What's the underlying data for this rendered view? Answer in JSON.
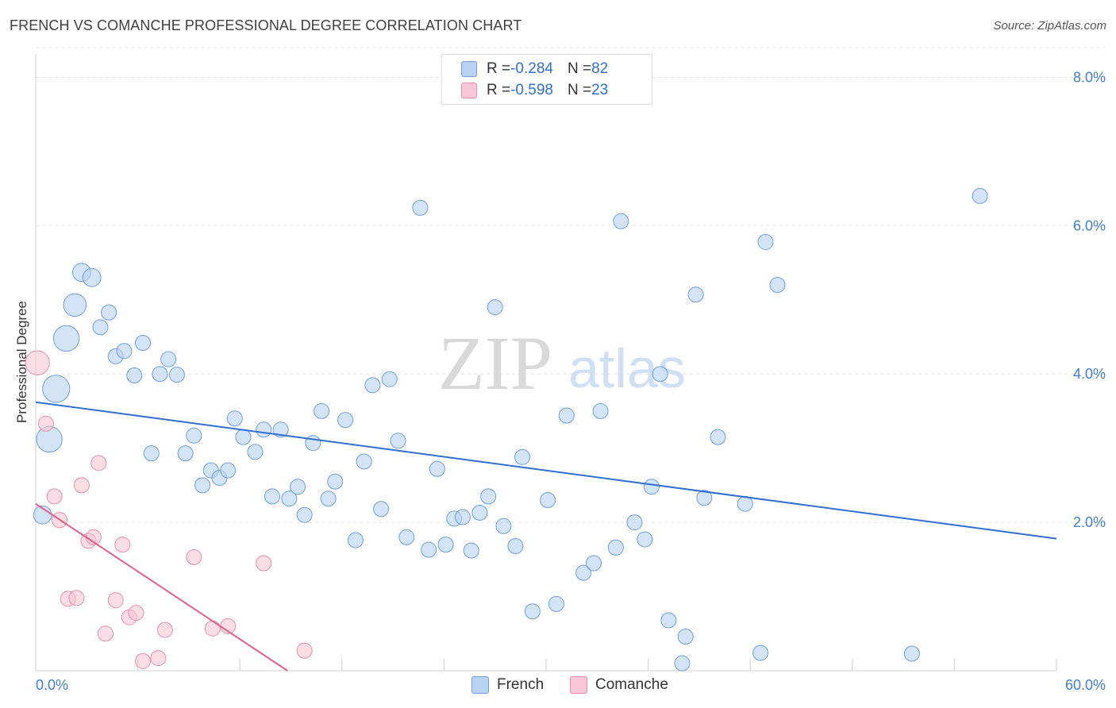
{
  "header": {
    "title": "FRENCH VS COMANCHE PROFESSIONAL DEGREE CORRELATION CHART",
    "source": "Source: ZipAtlas.com"
  },
  "watermark": {
    "zip": "ZIP",
    "atlas": "atlas"
  },
  "colors": {
    "french_fill": "#b8d2f2",
    "french_stroke": "#6f9fdc",
    "french_line": "#2f6fd0",
    "comanche_fill": "#f8c6d6",
    "comanche_stroke": "#e890ac",
    "comanche_line": "#e0608e",
    "axis_label": "#3f7fd6"
  },
  "legend": {
    "rows": [
      {
        "r_label": "R = ",
        "r_value": "-0.284",
        "n_label": "N = ",
        "n_value": "82"
      },
      {
        "r_label": "R = ",
        "r_value": "-0.598",
        "n_label": "N = ",
        "n_value": "23"
      }
    ],
    "bottom": [
      {
        "label": "French"
      },
      {
        "label": "Comanche"
      }
    ]
  },
  "chart_data": {
    "type": "scatter",
    "title": "FRENCH VS COMANCHE PROFESSIONAL DEGREE CORRELATION CHART",
    "xlabel": "",
    "ylabel": "Professional Degree",
    "xlim": [
      0,
      60
    ],
    "ylim": [
      0,
      8.4
    ],
    "x_tick_labels": [
      "0.0%",
      "60.0%"
    ],
    "y_ticks": [
      2,
      4,
      6,
      8
    ],
    "y_tick_labels": [
      "2.0%",
      "4.0%",
      "6.0%",
      "8.0%"
    ],
    "grid": true,
    "series": [
      {
        "name": "French",
        "R": -0.284,
        "N": 82,
        "trend": {
          "x": [
            0,
            60
          ],
          "y": [
            3.62,
            1.78
          ]
        },
        "points": [
          {
            "x": 0.4,
            "y": 2.1,
            "s": 1.2
          },
          {
            "x": 0.8,
            "y": 3.12,
            "s": 1.7
          },
          {
            "x": 1.2,
            "y": 3.8,
            "s": 1.8
          },
          {
            "x": 1.8,
            "y": 4.48,
            "s": 1.7
          },
          {
            "x": 2.3,
            "y": 4.93,
            "s": 1.5
          },
          {
            "x": 2.7,
            "y": 5.37,
            "s": 1.2
          },
          {
            "x": 3.3,
            "y": 5.3,
            "s": 1.2
          },
          {
            "x": 3.8,
            "y": 4.63,
            "s": 1
          },
          {
            "x": 4.3,
            "y": 4.83,
            "s": 1
          },
          {
            "x": 4.7,
            "y": 4.24,
            "s": 1
          },
          {
            "x": 5.2,
            "y": 4.31,
            "s": 1
          },
          {
            "x": 5.8,
            "y": 3.98,
            "s": 1
          },
          {
            "x": 6.3,
            "y": 4.42,
            "s": 1
          },
          {
            "x": 6.8,
            "y": 2.93,
            "s": 1
          },
          {
            "x": 7.3,
            "y": 4.0,
            "s": 1
          },
          {
            "x": 7.8,
            "y": 4.2,
            "s": 1
          },
          {
            "x": 8.3,
            "y": 3.99,
            "s": 1
          },
          {
            "x": 8.8,
            "y": 2.93,
            "s": 1
          },
          {
            "x": 9.3,
            "y": 3.17,
            "s": 1
          },
          {
            "x": 9.8,
            "y": 2.5,
            "s": 1
          },
          {
            "x": 10.3,
            "y": 2.7,
            "s": 1
          },
          {
            "x": 10.8,
            "y": 2.6,
            "s": 1
          },
          {
            "x": 11.3,
            "y": 2.7,
            "s": 1
          },
          {
            "x": 11.7,
            "y": 3.4,
            "s": 1
          },
          {
            "x": 12.2,
            "y": 3.15,
            "s": 1
          },
          {
            "x": 12.9,
            "y": 2.95,
            "s": 1
          },
          {
            "x": 13.4,
            "y": 3.25,
            "s": 1
          },
          {
            "x": 13.9,
            "y": 2.35,
            "s": 1
          },
          {
            "x": 14.4,
            "y": 3.25,
            "s": 1
          },
          {
            "x": 14.9,
            "y": 2.32,
            "s": 1
          },
          {
            "x": 15.4,
            "y": 2.48,
            "s": 1
          },
          {
            "x": 15.8,
            "y": 2.1,
            "s": 1
          },
          {
            "x": 16.3,
            "y": 3.07,
            "s": 1
          },
          {
            "x": 16.8,
            "y": 3.5,
            "s": 1
          },
          {
            "x": 17.2,
            "y": 2.32,
            "s": 1
          },
          {
            "x": 17.6,
            "y": 2.55,
            "s": 1
          },
          {
            "x": 18.2,
            "y": 3.38,
            "s": 1
          },
          {
            "x": 18.8,
            "y": 1.76,
            "s": 1
          },
          {
            "x": 19.3,
            "y": 2.82,
            "s": 1
          },
          {
            "x": 19.8,
            "y": 3.85,
            "s": 1
          },
          {
            "x": 20.3,
            "y": 2.18,
            "s": 1
          },
          {
            "x": 20.8,
            "y": 3.93,
            "s": 1
          },
          {
            "x": 21.3,
            "y": 3.1,
            "s": 1
          },
          {
            "x": 21.8,
            "y": 1.8,
            "s": 1
          },
          {
            "x": 22.6,
            "y": 6.24,
            "s": 1
          },
          {
            "x": 23.1,
            "y": 1.63,
            "s": 1
          },
          {
            "x": 23.6,
            "y": 2.72,
            "s": 1
          },
          {
            "x": 24.1,
            "y": 1.7,
            "s": 1
          },
          {
            "x": 24.6,
            "y": 2.05,
            "s": 1
          },
          {
            "x": 25.1,
            "y": 2.07,
            "s": 1
          },
          {
            "x": 25.6,
            "y": 1.62,
            "s": 1
          },
          {
            "x": 26.1,
            "y": 2.13,
            "s": 1
          },
          {
            "x": 26.6,
            "y": 2.35,
            "s": 1
          },
          {
            "x": 27.0,
            "y": 4.9,
            "s": 1
          },
          {
            "x": 27.5,
            "y": 1.95,
            "s": 1
          },
          {
            "x": 28.2,
            "y": 1.68,
            "s": 1
          },
          {
            "x": 28.6,
            "y": 2.88,
            "s": 1
          },
          {
            "x": 29.2,
            "y": 0.8,
            "s": 1
          },
          {
            "x": 30.1,
            "y": 2.3,
            "s": 1
          },
          {
            "x": 30.6,
            "y": 0.9,
            "s": 1
          },
          {
            "x": 31.2,
            "y": 3.44,
            "s": 1
          },
          {
            "x": 32.2,
            "y": 1.32,
            "s": 1
          },
          {
            "x": 32.8,
            "y": 1.45,
            "s": 1
          },
          {
            "x": 33.2,
            "y": 3.5,
            "s": 1
          },
          {
            "x": 34.1,
            "y": 1.66,
            "s": 1
          },
          {
            "x": 34.4,
            "y": 6.06,
            "s": 1
          },
          {
            "x": 35.2,
            "y": 2.0,
            "s": 1
          },
          {
            "x": 35.8,
            "y": 1.77,
            "s": 1
          },
          {
            "x": 36.2,
            "y": 2.48,
            "s": 1
          },
          {
            "x": 36.7,
            "y": 4.0,
            "s": 1
          },
          {
            "x": 37.2,
            "y": 0.68,
            "s": 1
          },
          {
            "x": 38.0,
            "y": 0.1,
            "s": 1
          },
          {
            "x": 38.2,
            "y": 0.46,
            "s": 1
          },
          {
            "x": 38.8,
            "y": 5.07,
            "s": 1
          },
          {
            "x": 39.3,
            "y": 2.33,
            "s": 1
          },
          {
            "x": 40.1,
            "y": 3.15,
            "s": 1
          },
          {
            "x": 41.7,
            "y": 2.25,
            "s": 1
          },
          {
            "x": 42.6,
            "y": 0.24,
            "s": 1
          },
          {
            "x": 42.9,
            "y": 5.78,
            "s": 1
          },
          {
            "x": 43.6,
            "y": 5.2,
            "s": 1
          },
          {
            "x": 51.5,
            "y": 0.23,
            "s": 1
          },
          {
            "x": 55.5,
            "y": 6.4,
            "s": 1
          }
        ]
      },
      {
        "name": "Comanche",
        "R": -0.598,
        "N": 23,
        "trend": {
          "x": [
            0,
            14.8
          ],
          "y": [
            2.25,
            0.0
          ]
        },
        "points": [
          {
            "x": 0.1,
            "y": 4.15,
            "s": 1.6
          },
          {
            "x": 0.6,
            "y": 3.33,
            "s": 1
          },
          {
            "x": 1.1,
            "y": 2.35,
            "s": 1
          },
          {
            "x": 1.4,
            "y": 2.03,
            "s": 1
          },
          {
            "x": 1.9,
            "y": 0.97,
            "s": 1
          },
          {
            "x": 2.4,
            "y": 0.98,
            "s": 1
          },
          {
            "x": 2.7,
            "y": 2.5,
            "s": 1
          },
          {
            "x": 3.1,
            "y": 1.75,
            "s": 1
          },
          {
            "x": 3.4,
            "y": 1.8,
            "s": 1
          },
          {
            "x": 3.7,
            "y": 2.8,
            "s": 1
          },
          {
            "x": 4.1,
            "y": 0.5,
            "s": 1
          },
          {
            "x": 4.7,
            "y": 0.95,
            "s": 1
          },
          {
            "x": 5.1,
            "y": 1.7,
            "s": 1
          },
          {
            "x": 5.5,
            "y": 0.72,
            "s": 1
          },
          {
            "x": 5.9,
            "y": 0.78,
            "s": 1
          },
          {
            "x": 6.3,
            "y": 0.13,
            "s": 1
          },
          {
            "x": 7.2,
            "y": 0.17,
            "s": 1
          },
          {
            "x": 7.6,
            "y": 0.55,
            "s": 1
          },
          {
            "x": 9.3,
            "y": 1.53,
            "s": 1
          },
          {
            "x": 10.4,
            "y": 0.57,
            "s": 1
          },
          {
            "x": 11.3,
            "y": 0.6,
            "s": 1
          },
          {
            "x": 13.4,
            "y": 1.45,
            "s": 1
          },
          {
            "x": 15.8,
            "y": 0.27,
            "s": 1
          }
        ]
      }
    ]
  }
}
